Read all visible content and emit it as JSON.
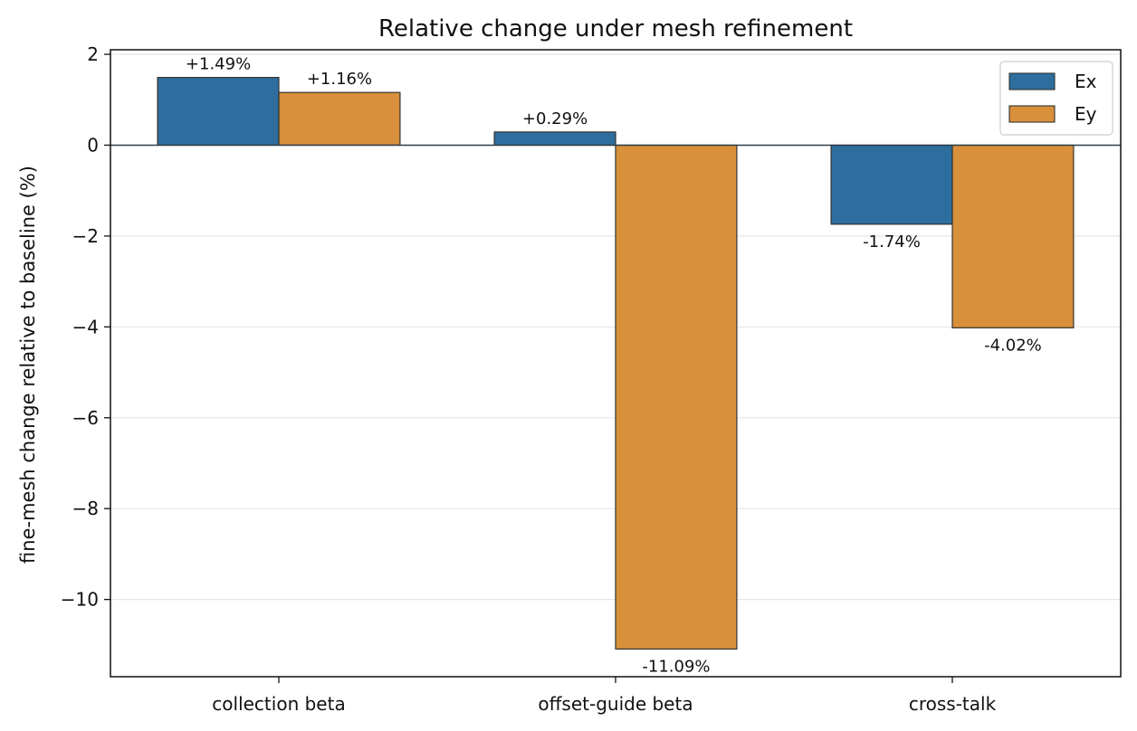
{
  "chart_data": {
    "type": "bar",
    "title": "Relative change under mesh refinement",
    "xlabel": "",
    "ylabel": "fine-mesh change relative to baseline (%)",
    "categories": [
      "collection beta",
      "offset-guide beta",
      "cross-talk"
    ],
    "series": [
      {
        "name": "Ex",
        "color": "#2e6e9e",
        "values": [
          1.49,
          0.29,
          -1.74
        ],
        "labels": [
          "+1.49%",
          "+0.29%",
          "-1.74%"
        ]
      },
      {
        "name": "Ey",
        "color": "#d8903a",
        "values": [
          1.16,
          -11.09,
          -4.02
        ],
        "labels": [
          "+1.16%",
          "-11.09%",
          "-4.02%"
        ]
      }
    ],
    "ylim": [
      -11.7,
      2.1
    ],
    "yticks": [
      2,
      0,
      -2,
      -4,
      -6,
      -8,
      -10
    ],
    "ytick_labels": [
      "2",
      "0",
      "−2",
      "−4",
      "−6",
      "−8",
      "−10"
    ],
    "grid": "horizontal",
    "legend": "top-right"
  }
}
